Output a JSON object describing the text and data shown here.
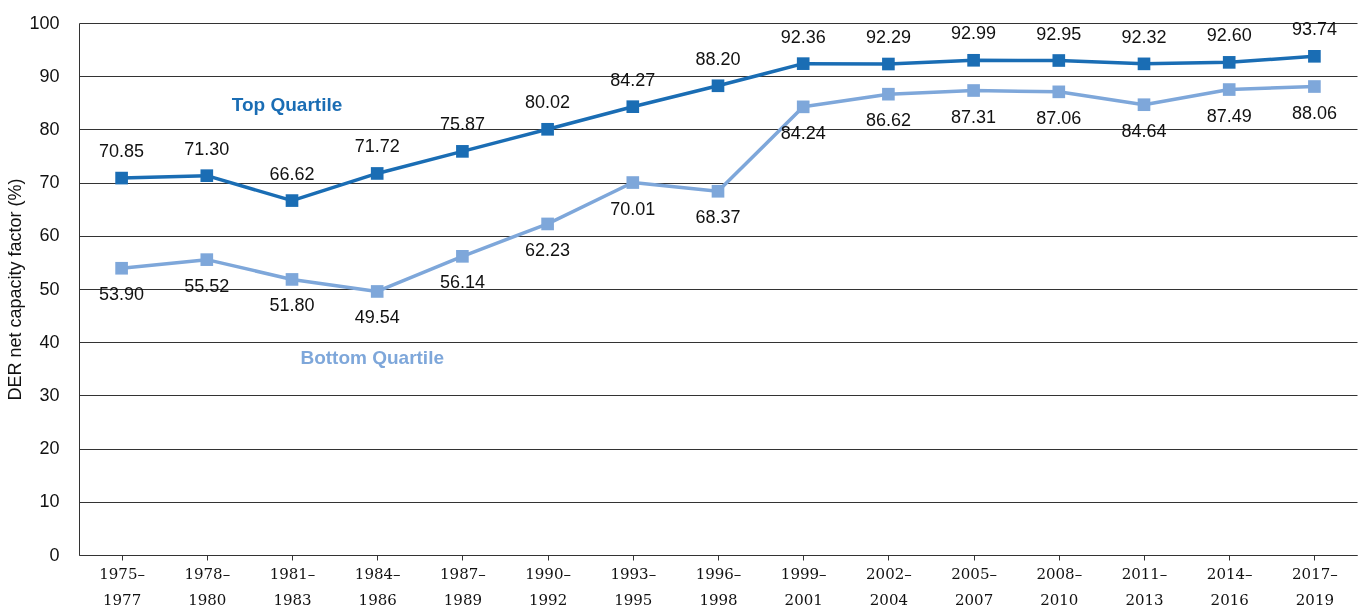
{
  "chart_data": {
    "type": "line",
    "ylabel": "DER net capacity factor (%)",
    "categories": [
      "1975–1977",
      "1978–1980",
      "1981–1983",
      "1984–1986",
      "1987–1989",
      "1990–1992",
      "1993–1995",
      "1996–1998",
      "1999–2001",
      "2002–2004",
      "2005–2007",
      "2008–2010",
      "2011–2013",
      "2014–2016",
      "2017–2019"
    ],
    "series": [
      {
        "name": "Top Quartile",
        "color": "#1a6db4",
        "values": [
          70.85,
          71.3,
          66.62,
          71.72,
          75.87,
          80.02,
          84.27,
          88.2,
          92.36,
          92.29,
          92.99,
          92.95,
          92.32,
          92.6,
          93.74
        ],
        "value_labels": [
          "70.85",
          "71.30",
          "66.62",
          "71.72",
          "75.87",
          "80.02",
          "84.27",
          "88.20",
          "92.36",
          "92.29",
          "92.99",
          "92.95",
          "92.32",
          "92.60",
          "93.74"
        ]
      },
      {
        "name": "Bottom Quartile",
        "color": "#7ea7da",
        "values": [
          53.9,
          55.52,
          51.8,
          49.54,
          56.14,
          62.23,
          70.01,
          68.37,
          84.24,
          86.62,
          87.31,
          87.06,
          84.64,
          87.49,
          88.06
        ],
        "value_labels": [
          "53.90",
          "55.52",
          "51.80",
          "49.54",
          "56.14",
          "62.23",
          "70.01",
          "68.37",
          "84.24",
          "86.62",
          "87.31",
          "87.06",
          "84.64",
          "87.49",
          "88.06"
        ]
      }
    ],
    "ylim": [
      0,
      100
    ],
    "yticks": [
      0,
      10,
      20,
      30,
      40,
      50,
      60,
      70,
      80,
      90,
      100
    ],
    "grid": "y",
    "marker": "square",
    "line_style": "solid"
  }
}
